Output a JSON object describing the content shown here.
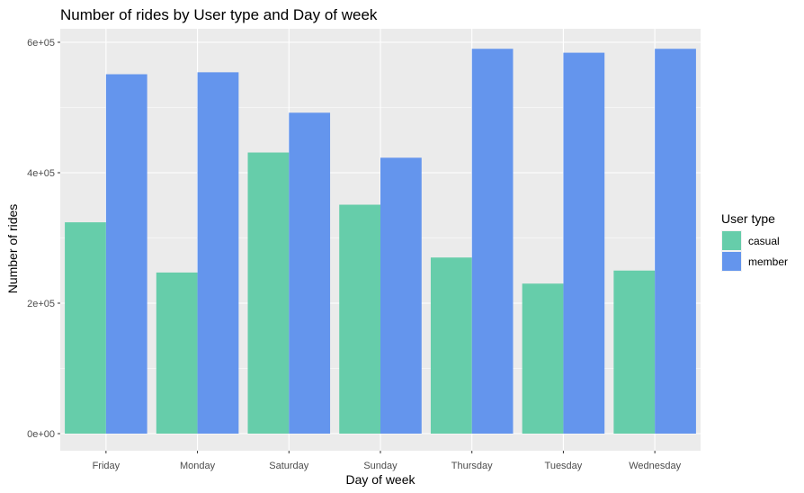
{
  "chart_data": {
    "type": "bar",
    "title": "Number of rides by User type and Day of week",
    "xlabel": "Day of week",
    "ylabel": "Number of rides",
    "categories": [
      "Friday",
      "Monday",
      "Saturday",
      "Sunday",
      "Thursday",
      "Tuesday",
      "Wednesday"
    ],
    "series": [
      {
        "name": "casual",
        "color": "#66CDAA",
        "values": [
          324000,
          247000,
          431000,
          351000,
          270000,
          230000,
          250000
        ]
      },
      {
        "name": "member",
        "color": "#6495ED",
        "values": [
          551000,
          554000,
          492000,
          423000,
          590000,
          584000,
          590000
        ]
      }
    ],
    "ylim": [
      0,
      600000
    ],
    "yticks": [
      {
        "value": 0,
        "label": "0e+00"
      },
      {
        "value": 200000,
        "label": "2e+05"
      },
      {
        "value": 400000,
        "label": "4e+05"
      },
      {
        "value": 600000,
        "label": "6e+05"
      }
    ],
    "grid": true,
    "panel_background": "#EBEBEB",
    "legend": {
      "title": "User type",
      "position": "right"
    }
  }
}
